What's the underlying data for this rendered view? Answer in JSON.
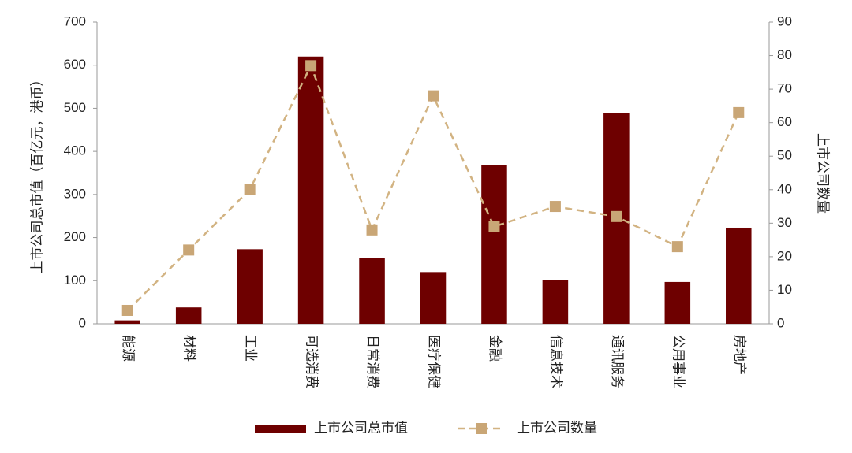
{
  "chart_data": {
    "type": "bar",
    "y_label": "上市公司总市值（百亿元，港币）",
    "y2_label": "上市公司数量",
    "categories": [
      "能源",
      "材料",
      "工业",
      "可选消费",
      "日常消费",
      "医疗保健",
      "金融",
      "信息技术",
      "通讯服务",
      "公用事业",
      "房地产"
    ],
    "series": [
      {
        "name": "上市公司总市值",
        "type": "bar",
        "color": "#6e0000",
        "values": [
          8,
          38,
          173,
          620,
          152,
          120,
          368,
          102,
          488,
          97,
          223
        ]
      },
      {
        "name": "上市公司数量",
        "type": "line",
        "axis": "y2",
        "color": "#d2b382",
        "values": [
          4,
          22,
          40,
          77,
          28,
          68,
          29,
          35,
          32,
          23,
          63
        ]
      }
    ],
    "ylim": [
      0,
      700
    ],
    "yticks": [
      0,
      100,
      200,
      300,
      400,
      500,
      600,
      700
    ],
    "y2lim": [
      0,
      90
    ],
    "y2ticks": [
      0,
      10,
      20,
      30,
      40,
      50,
      60,
      70,
      80,
      90
    ],
    "grid": false,
    "legend": "bottom"
  }
}
